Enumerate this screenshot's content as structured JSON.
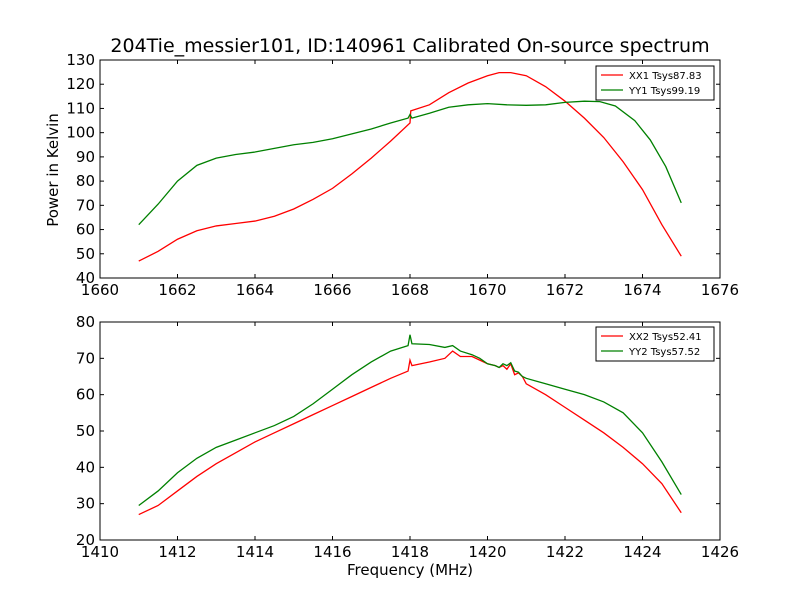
{
  "figure": {
    "title": "204Tie_messier101, ID:140961 Calibrated On-source spectrum",
    "ylabel": "Power in Kelvin",
    "xlabel": "Frequency (MHz)"
  },
  "chart_data": [
    {
      "type": "line",
      "xlabel": "",
      "ylabel": "Power in Kelvin",
      "xlim": [
        1660,
        1676
      ],
      "ylim": [
        40,
        130
      ],
      "xticks": [
        1660,
        1662,
        1664,
        1666,
        1668,
        1670,
        1672,
        1674,
        1676
      ],
      "yticks": [
        40,
        50,
        60,
        70,
        80,
        90,
        100,
        110,
        120,
        130
      ],
      "grid": false,
      "legend_position": "top-right",
      "series": [
        {
          "name": "XX1 Tsys87.83",
          "color": "#ff0000",
          "points": [
            [
              1661.0,
              47
            ],
            [
              1661.5,
              51
            ],
            [
              1662.0,
              56
            ],
            [
              1662.5,
              59.5
            ],
            [
              1663.0,
              61.5
            ],
            [
              1663.5,
              62.5
            ],
            [
              1664.0,
              63.5
            ],
            [
              1664.5,
              65.5
            ],
            [
              1665.0,
              68.5
            ],
            [
              1665.5,
              72.5
            ],
            [
              1666.0,
              77
            ],
            [
              1666.5,
              83
            ],
            [
              1667.0,
              89.5
            ],
            [
              1667.5,
              96.5
            ],
            [
              1668.0,
              104
            ],
            [
              1668.02,
              109
            ],
            [
              1668.5,
              111.5
            ],
            [
              1669.0,
              116.5
            ],
            [
              1669.5,
              120.5
            ],
            [
              1670.0,
              123.5
            ],
            [
              1670.3,
              124.8
            ],
            [
              1670.6,
              124.8
            ],
            [
              1671.0,
              123.5
            ],
            [
              1671.5,
              119
            ],
            [
              1672.0,
              113
            ],
            [
              1672.5,
              106
            ],
            [
              1673.0,
              98
            ],
            [
              1673.5,
              88
            ],
            [
              1674.0,
              76.5
            ],
            [
              1674.5,
              62
            ],
            [
              1675.0,
              49
            ]
          ]
        },
        {
          "name": "YY1 Tsys99.19",
          "color": "#008000",
          "points": [
            [
              1661.0,
              62
            ],
            [
              1661.5,
              70.5
            ],
            [
              1662.0,
              80
            ],
            [
              1662.5,
              86.5
            ],
            [
              1663.0,
              89.5
            ],
            [
              1663.5,
              91
            ],
            [
              1664.0,
              92
            ],
            [
              1664.5,
              93.5
            ],
            [
              1665.0,
              95
            ],
            [
              1665.5,
              96
            ],
            [
              1666.0,
              97.5
            ],
            [
              1666.5,
              99.5
            ],
            [
              1667.0,
              101.5
            ],
            [
              1667.5,
              104
            ],
            [
              1667.95,
              106
            ],
            [
              1668.0,
              107.5
            ],
            [
              1668.05,
              106
            ],
            [
              1668.5,
              108
            ],
            [
              1669.0,
              110.5
            ],
            [
              1669.5,
              111.5
            ],
            [
              1670.0,
              112
            ],
            [
              1670.5,
              111.5
            ],
            [
              1671.0,
              111.3
            ],
            [
              1671.5,
              111.5
            ],
            [
              1672.0,
              112.5
            ],
            [
              1672.5,
              113
            ],
            [
              1672.9,
              112.8
            ],
            [
              1673.3,
              111
            ],
            [
              1673.8,
              105
            ],
            [
              1674.2,
              97
            ],
            [
              1674.6,
              86
            ],
            [
              1675.0,
              71
            ]
          ]
        }
      ]
    },
    {
      "type": "line",
      "xlabel": "Frequency (MHz)",
      "ylabel": "",
      "xlim": [
        1410,
        1426
      ],
      "ylim": [
        20,
        80
      ],
      "xticks": [
        1410,
        1412,
        1414,
        1416,
        1418,
        1420,
        1422,
        1424,
        1426
      ],
      "yticks": [
        20,
        30,
        40,
        50,
        60,
        70,
        80
      ],
      "grid": false,
      "legend_position": "top-right",
      "series": [
        {
          "name": "XX2 Tsys52.41",
          "color": "#ff0000",
          "points": [
            [
              1411.0,
              27
            ],
            [
              1411.5,
              29.5
            ],
            [
              1412.0,
              33.5
            ],
            [
              1412.5,
              37.5
            ],
            [
              1413.0,
              41
            ],
            [
              1413.5,
              44
            ],
            [
              1414.0,
              47
            ],
            [
              1414.5,
              49.5
            ],
            [
              1415.0,
              52
            ],
            [
              1415.5,
              54.5
            ],
            [
              1416.0,
              57
            ],
            [
              1416.5,
              59.5
            ],
            [
              1417.0,
              62
            ],
            [
              1417.5,
              64.5
            ],
            [
              1417.95,
              66.5
            ],
            [
              1418.0,
              69.5
            ],
            [
              1418.05,
              68
            ],
            [
              1418.5,
              69
            ],
            [
              1418.9,
              70
            ],
            [
              1419.1,
              72
            ],
            [
              1419.3,
              70.5
            ],
            [
              1419.6,
              70.5
            ],
            [
              1419.8,
              69.5
            ],
            [
              1420.0,
              68.5
            ],
            [
              1420.2,
              68
            ],
            [
              1420.3,
              67.5
            ],
            [
              1420.4,
              68
            ],
            [
              1420.5,
              67
            ],
            [
              1420.6,
              68.5
            ],
            [
              1420.7,
              65.5
            ],
            [
              1420.8,
              66
            ],
            [
              1420.9,
              65
            ],
            [
              1421.0,
              63
            ],
            [
              1421.5,
              60
            ],
            [
              1422.0,
              56.5
            ],
            [
              1422.5,
              53
            ],
            [
              1423.0,
              49.5
            ],
            [
              1423.5,
              45.5
            ],
            [
              1424.0,
              41
            ],
            [
              1424.5,
              35.5
            ],
            [
              1425.0,
              27.5
            ]
          ]
        },
        {
          "name": "YY2 Tsys57.52",
          "color": "#008000",
          "points": [
            [
              1411.0,
              29.5
            ],
            [
              1411.5,
              33.5
            ],
            [
              1412.0,
              38.5
            ],
            [
              1412.5,
              42.5
            ],
            [
              1413.0,
              45.5
            ],
            [
              1413.5,
              47.5
            ],
            [
              1414.0,
              49.5
            ],
            [
              1414.5,
              51.5
            ],
            [
              1415.0,
              54
            ],
            [
              1415.5,
              57.5
            ],
            [
              1416.0,
              61.5
            ],
            [
              1416.5,
              65.5
            ],
            [
              1417.0,
              69
            ],
            [
              1417.5,
              72
            ],
            [
              1417.95,
              73.5
            ],
            [
              1418.0,
              76.5
            ],
            [
              1418.05,
              74
            ],
            [
              1418.5,
              73.8
            ],
            [
              1418.9,
              73
            ],
            [
              1419.1,
              73.5
            ],
            [
              1419.3,
              72
            ],
            [
              1419.6,
              71
            ],
            [
              1419.8,
              70
            ],
            [
              1420.0,
              68.5
            ],
            [
              1420.2,
              68
            ],
            [
              1420.3,
              67.5
            ],
            [
              1420.4,
              68.5
            ],
            [
              1420.5,
              68
            ],
            [
              1420.6,
              68.8
            ],
            [
              1420.7,
              66.5
            ],
            [
              1420.8,
              66.2
            ],
            [
              1420.9,
              65
            ],
            [
              1421.0,
              64.5
            ],
            [
              1421.5,
              63
            ],
            [
              1422.0,
              61.5
            ],
            [
              1422.5,
              60
            ],
            [
              1423.0,
              58
            ],
            [
              1423.5,
              55
            ],
            [
              1424.0,
              49.5
            ],
            [
              1424.5,
              41.5
            ],
            [
              1425.0,
              32.5
            ]
          ]
        }
      ]
    }
  ]
}
